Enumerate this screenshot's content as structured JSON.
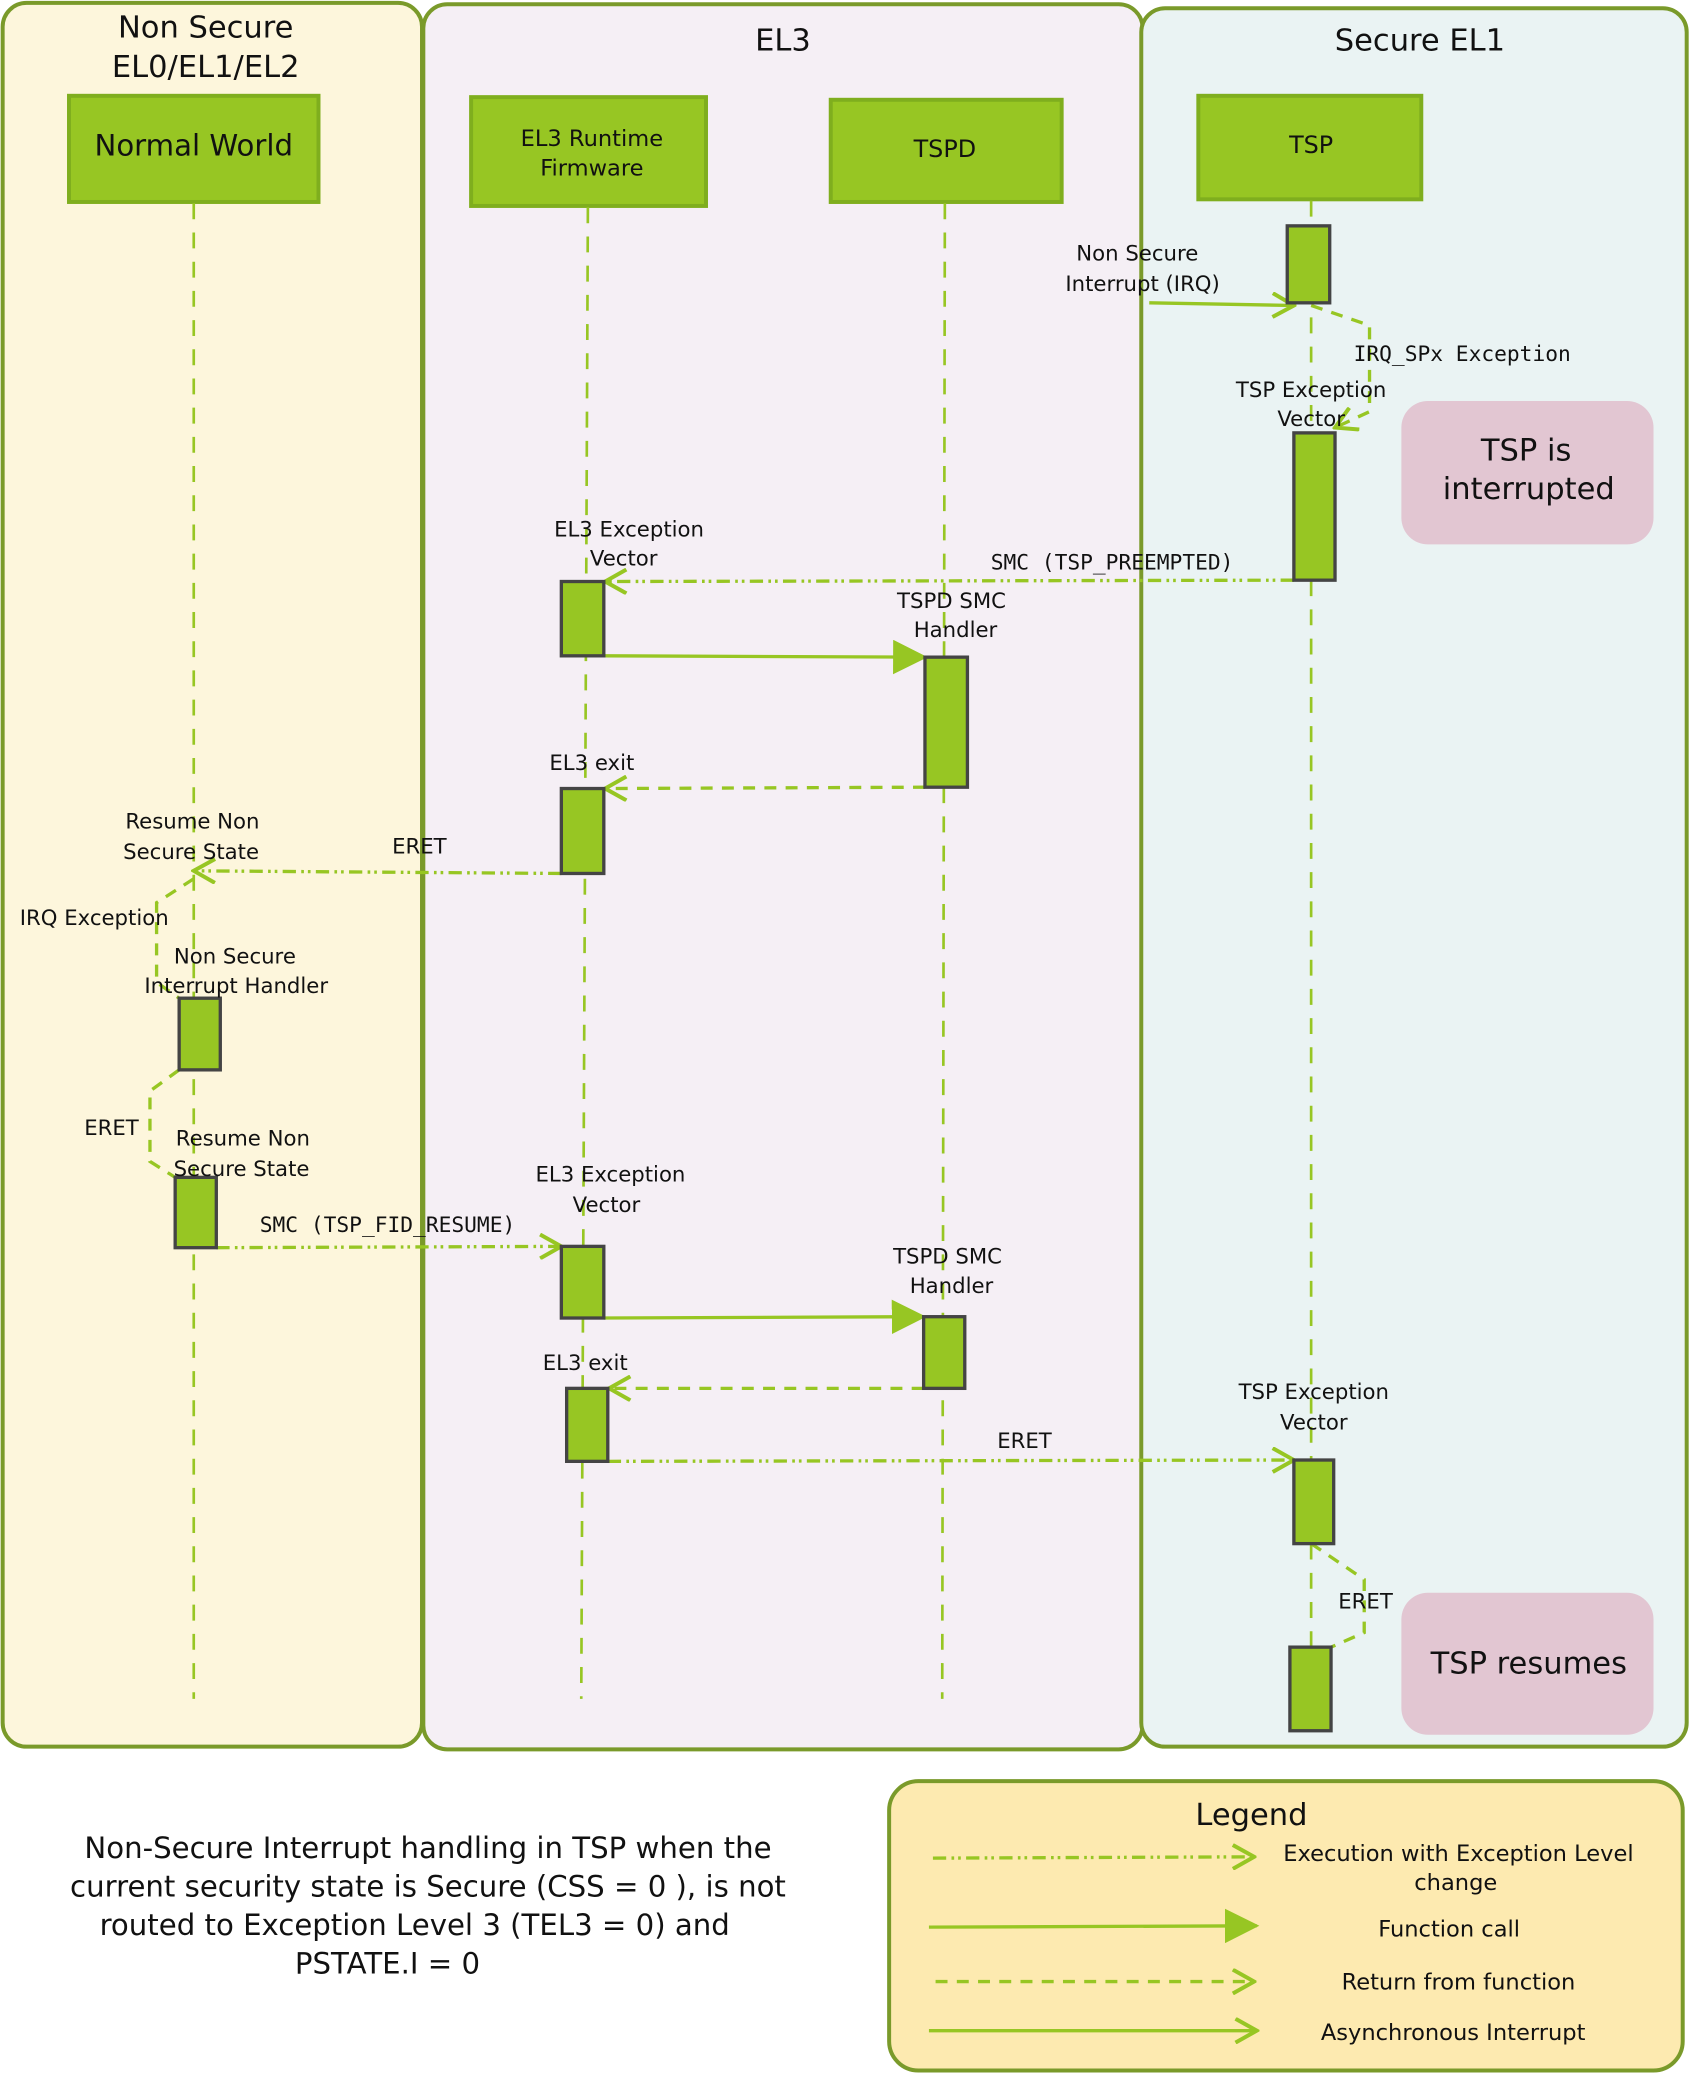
{
  "colors": {
    "participant": "#97c623",
    "arrow": "#97c623",
    "lane_border": "#7a9a2a",
    "non_secure_bg": "#fdf6dc",
    "el3_bg": "#f5eff5",
    "secure_bg": "#eaf3f3",
    "note_bg": "#e2c6d2",
    "legend_bg": "#fdeab0"
  },
  "lanes": {
    "non_secure": [
      "Non Secure",
      "EL0/EL1/EL2"
    ],
    "el3": "EL3",
    "secure_el1": "Secure EL1"
  },
  "participants": {
    "normal_world": "Normal World",
    "el3_runtime": [
      "EL3 Runtime",
      "Firmware"
    ],
    "tspd": "TSPD",
    "tsp": "TSP"
  },
  "labels": {
    "ns_interrupt": [
      "Non Secure",
      "Interrupt (IRQ)"
    ],
    "irq_spx": "IRQ_SPx Exception",
    "tsp_vector_1": [
      "TSP Exception",
      "Vector"
    ],
    "el3_vector_1": [
      "EL3 Exception",
      "Vector"
    ],
    "smc_preempted": "SMC (TSP_PREEMPTED)",
    "tspd_handler_1": [
      "TSPD SMC",
      "Handler"
    ],
    "el3_exit_1": "EL3 exit",
    "resume_ns_1": [
      "Resume Non",
      "Secure State"
    ],
    "eret_1": "ERET",
    "irq_exception": "IRQ Exception",
    "ns_handler": [
      "Non Secure",
      "Interrupt Handler"
    ],
    "eret_2": "ERET",
    "resume_ns_2": [
      "Resume Non",
      "Secure State"
    ],
    "smc_resume": "SMC (TSP_FID_RESUME)",
    "el3_vector_2": [
      "EL3 Exception",
      "Vector"
    ],
    "tspd_handler_2": [
      "TSPD SMC",
      "Handler"
    ],
    "el3_exit_2": "EL3 exit",
    "tsp_vector_2": [
      "TSP Exception",
      "Vector"
    ],
    "eret_3": "ERET",
    "eret_4": "ERET"
  },
  "notes": {
    "interrupted": [
      "TSP is",
      "interrupted"
    ],
    "resumes": "TSP resumes"
  },
  "caption": [
    "Non-Secure Interrupt handling in TSP when the",
    "current security state is Secure (CSS = 0 ), is not",
    "routed to Exception Level 3 (TEL3 = 0) and",
    "PSTATE.I = 0"
  ],
  "legend": {
    "title": "Legend",
    "items": [
      {
        "style": "dash-dot open arrow",
        "label": [
          "Execution with Exception Level",
          "change"
        ]
      },
      {
        "style": "solid filled arrow",
        "label": [
          "Function call"
        ]
      },
      {
        "style": "dashed open arrow",
        "label": [
          "Return from function"
        ]
      },
      {
        "style": "solid open arrow",
        "label": [
          "Asynchronous Interrupt"
        ]
      }
    ]
  }
}
